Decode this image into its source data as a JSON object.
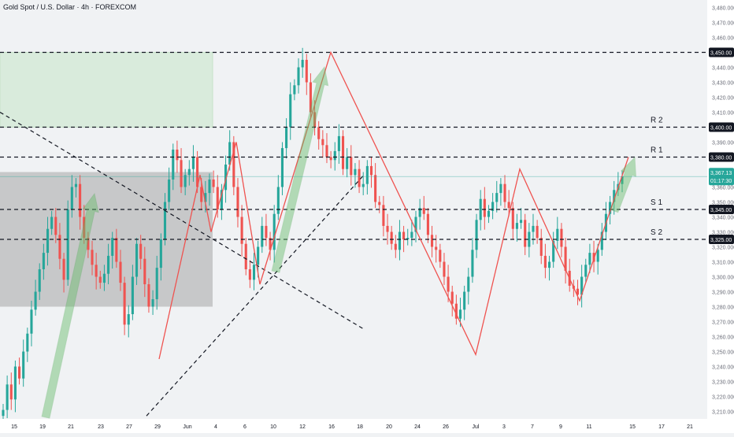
{
  "chart_data": {
    "type": "candlestick",
    "title": "Gold Spot / U.S. Dollar · 4h · FOREXCOM",
    "ylim": [
      3205,
      3485
    ],
    "y_ticks": [
      3210,
      3220,
      3230,
      3240,
      3250,
      3260,
      3270,
      3280,
      3290,
      3300,
      3310,
      3320,
      3330,
      3340,
      3350,
      3360,
      3370,
      3380,
      3390,
      3400,
      3410,
      3420,
      3430,
      3440,
      3450,
      3460,
      3470,
      3480
    ],
    "x_ticks": [
      "15",
      "19",
      "21",
      "23",
      "27",
      "29",
      "Jun",
      "4",
      "6",
      "10",
      "12",
      "16",
      "18",
      "20",
      "24",
      "26",
      "Jul",
      "3",
      "7",
      "9",
      "11",
      "15",
      "17",
      "21"
    ],
    "last_price": "3,367.13",
    "countdown": "01:17:30",
    "levels": [
      {
        "name": "R 2",
        "price": 3400,
        "label": "3,400.00"
      },
      {
        "name": "R 1",
        "price": 3380,
        "label": "3,380.00"
      },
      {
        "name": "S 1",
        "price": 3345,
        "label": "3,345.00"
      },
      {
        "name": "S 2",
        "price": 3325,
        "label": "3,325.00"
      },
      {
        "name": "",
        "price": 3450,
        "label": "3,450.00"
      }
    ],
    "zigzag_prices": [
      3245,
      3368,
      3330,
      3390,
      3295,
      3450,
      3248,
      3372,
      3284,
      3380
    ],
    "closes": [
      3211,
      3228,
      3218,
      3240,
      3232,
      3250,
      3262,
      3278,
      3290,
      3305,
      3316,
      3332,
      3340,
      3328,
      3312,
      3298,
      3345,
      3360,
      3362,
      3340,
      3326,
      3318,
      3308,
      3300,
      3296,
      3302,
      3314,
      3326,
      3310,
      3296,
      3268,
      3275,
      3300,
      3322,
      3312,
      3295,
      3280,
      3285,
      3306,
      3325,
      3350,
      3365,
      3385,
      3378,
      3360,
      3368,
      3372,
      3380,
      3360,
      3350,
      3356,
      3365,
      3360,
      3345,
      3358,
      3375,
      3390,
      3360,
      3340,
      3322,
      3305,
      3298,
      3308,
      3320,
      3334,
      3326,
      3318,
      3342,
      3360,
      3386,
      3400,
      3422,
      3428,
      3440,
      3445,
      3430,
      3410,
      3400,
      3392,
      3388,
      3380,
      3378,
      3384,
      3394,
      3372,
      3380,
      3368,
      3372,
      3360,
      3362,
      3374,
      3368,
      3350,
      3348,
      3334,
      3330,
      3322,
      3318,
      3330,
      3325,
      3326,
      3330,
      3340,
      3346,
      3342,
      3328,
      3320,
      3318,
      3310,
      3300,
      3290,
      3282,
      3272,
      3278,
      3290,
      3300,
      3318,
      3338,
      3352,
      3340,
      3344,
      3350,
      3356,
      3362,
      3350,
      3346,
      3332,
      3336,
      3338,
      3320,
      3330,
      3334,
      3326,
      3314,
      3306,
      3310,
      3324,
      3332,
      3320,
      3304,
      3294,
      3292,
      3288,
      3300,
      3308,
      3316,
      3310,
      3318,
      3330,
      3342,
      3350,
      3358,
      3362,
      3367
    ]
  }
}
